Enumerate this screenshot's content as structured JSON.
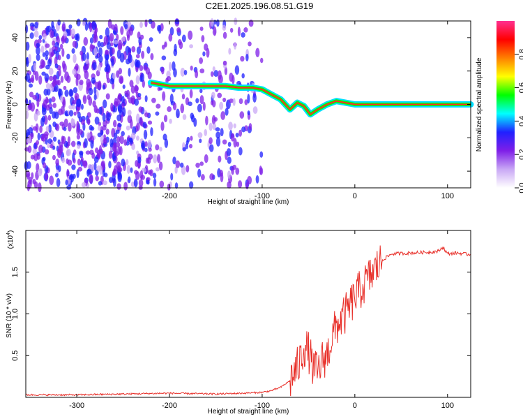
{
  "title": "C2E1.2025.196.08.51.G19",
  "chart_data": [
    {
      "type": "heatmap",
      "xlabel": "Height of straight line (km)",
      "ylabel": "Frequency (Hz)",
      "xlim": [
        -355,
        125
      ],
      "ylim": [
        -50,
        50
      ],
      "x_ticks": [
        -300,
        -200,
        -100,
        0,
        100
      ],
      "y_ticks": [
        -40,
        -20,
        0,
        20,
        40
      ],
      "colorbar": {
        "label": "Normalized spectral amplitude",
        "range": [
          0.0,
          1.0
        ],
        "ticks": [
          0.0,
          0.2,
          0.4,
          0.6,
          0.8
        ],
        "colormap": [
          "#ffffff",
          "#c9a8f5",
          "#7f1fe8",
          "#2020ff",
          "#00ffff",
          "#00ff00",
          "#ffff00",
          "#ff8000",
          "#ff0000",
          "#ff3090"
        ]
      },
      "ridge": {
        "x": [
          -220,
          -200,
          -180,
          -160,
          -140,
          -125,
          -110,
          -100,
          -90,
          -80,
          -70,
          -62,
          -55,
          -48,
          -40,
          -30,
          -20,
          -10,
          0,
          20,
          60,
          125
        ],
        "y": [
          13,
          11,
          11,
          11,
          11,
          10,
          10,
          9,
          6,
          3,
          -3,
          1,
          -1,
          -6,
          -3,
          0,
          2,
          1,
          0,
          0,
          0,
          0
        ]
      }
    },
    {
      "type": "line",
      "xlabel": "Height of straight line (km)",
      "ylabel": "SNR (10 * v/v)",
      "y_multiplier": "(x10",
      "y_multiplier_exp": "4",
      "xlim": [
        -355,
        125
      ],
      "ylim": [
        0,
        2.0
      ],
      "x_ticks": [
        -300,
        -200,
        -100,
        0,
        100
      ],
      "y_ticks": [
        0.5,
        1.0,
        1.5
      ],
      "y_tick_labels": [
        "0.5",
        "1.0",
        "1.5"
      ],
      "series": [
        {
          "color": "#e8302a",
          "x": [
            -355,
            -300,
            -250,
            -200,
            -150,
            -120,
            -100,
            -90,
            -80,
            -70,
            -60,
            -55,
            -50,
            -45,
            -40,
            -35,
            -30,
            -25,
            -20,
            -10,
            0,
            10,
            20,
            30,
            40,
            60,
            80,
            90,
            95,
            100,
            110,
            125
          ],
          "y": [
            0.03,
            0.03,
            0.04,
            0.05,
            0.04,
            0.05,
            0.06,
            0.08,
            0.12,
            0.2,
            0.4,
            0.6,
            0.55,
            0.35,
            0.3,
            0.45,
            0.5,
            0.7,
            0.85,
            1.0,
            1.2,
            1.35,
            1.5,
            1.65,
            1.72,
            1.73,
            1.74,
            1.75,
            1.8,
            1.72,
            1.73,
            1.71
          ]
        }
      ]
    }
  ]
}
